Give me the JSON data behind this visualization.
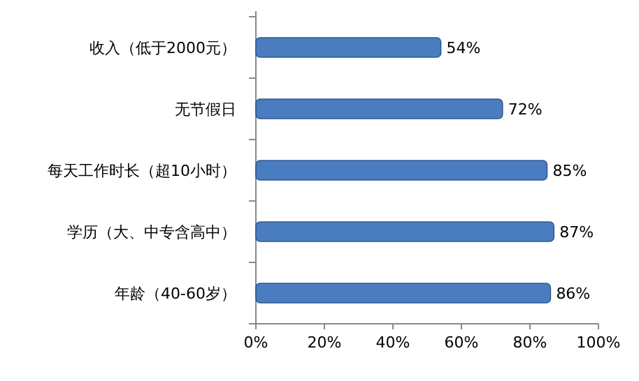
{
  "chart_data": {
    "type": "bar",
    "orientation": "horizontal",
    "categories": [
      "收入（低于2000元）",
      "无节假日",
      "每天工作时长（超10小时）",
      "学历（大、中专含高中）",
      "年龄（40-60岁）"
    ],
    "values": [
      54,
      72,
      85,
      87,
      86
    ],
    "value_labels": [
      "54%",
      "72%",
      "85%",
      "87%",
      "86%"
    ],
    "color": "#4a7cc0",
    "xlim": [
      0,
      100
    ],
    "xticks": [
      {
        "value": 0,
        "label": "0%"
      },
      {
        "value": 20,
        "label": "20%"
      },
      {
        "value": 40,
        "label": "40%"
      },
      {
        "value": 60,
        "label": "60%"
      },
      {
        "value": 80,
        "label": "80%"
      },
      {
        "value": 100,
        "label": "100%"
      }
    ],
    "grid": false
  }
}
